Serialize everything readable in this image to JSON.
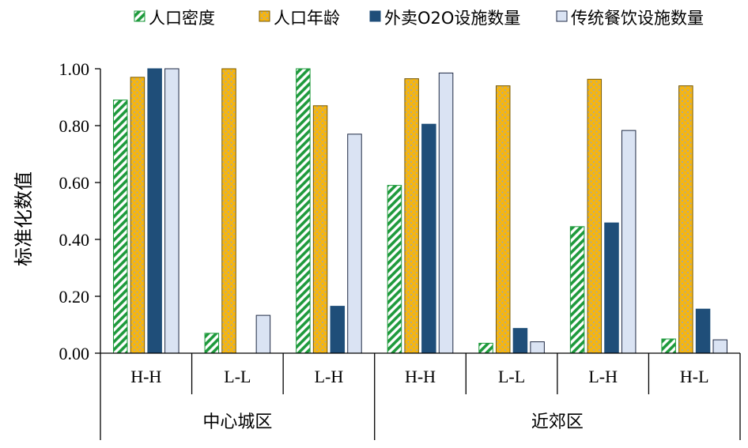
{
  "chart_data": {
    "type": "bar",
    "ylabel": "标准化数值",
    "ylim": [
      0,
      1
    ],
    "yticks": [
      "0.00",
      "0.20",
      "0.40",
      "0.60",
      "0.80",
      "1.00"
    ],
    "ytick_values": [
      0,
      0.2,
      0.4,
      0.6,
      0.8,
      1.0
    ],
    "legend_position": "top",
    "groups": [
      {
        "name": "中心城区",
        "categories": [
          "H-H",
          "L-L",
          "L-H"
        ]
      },
      {
        "name": "近郊区",
        "categories": [
          "H-H",
          "L-L",
          "L-H",
          "H-L"
        ]
      }
    ],
    "categories": [
      "H-H",
      "L-L",
      "L-H",
      "H-H",
      "L-L",
      "L-H",
      "H-L"
    ],
    "series": [
      {
        "name": "人口密度",
        "color": "#1e9a3c",
        "pattern": "diagonal-stripes",
        "values": [
          0.89,
          0.07,
          1.0,
          0.59,
          0.035,
          0.445,
          0.05
        ]
      },
      {
        "name": "人口年龄",
        "color": "#f5b512",
        "pattern": "dots",
        "values": [
          0.97,
          1.0,
          0.87,
          0.965,
          0.94,
          0.963,
          0.94
        ]
      },
      {
        "name": "外卖O2O设施数量",
        "color": "#1f4e79",
        "pattern": "solid",
        "values": [
          1.0,
          0.0,
          0.165,
          0.805,
          0.087,
          0.458,
          0.155
        ]
      },
      {
        "name": "传统餐饮设施数量",
        "color": "#dae3f3",
        "pattern": "solid",
        "values": [
          1.0,
          0.133,
          0.77,
          0.985,
          0.04,
          0.783,
          0.047
        ]
      }
    ]
  }
}
